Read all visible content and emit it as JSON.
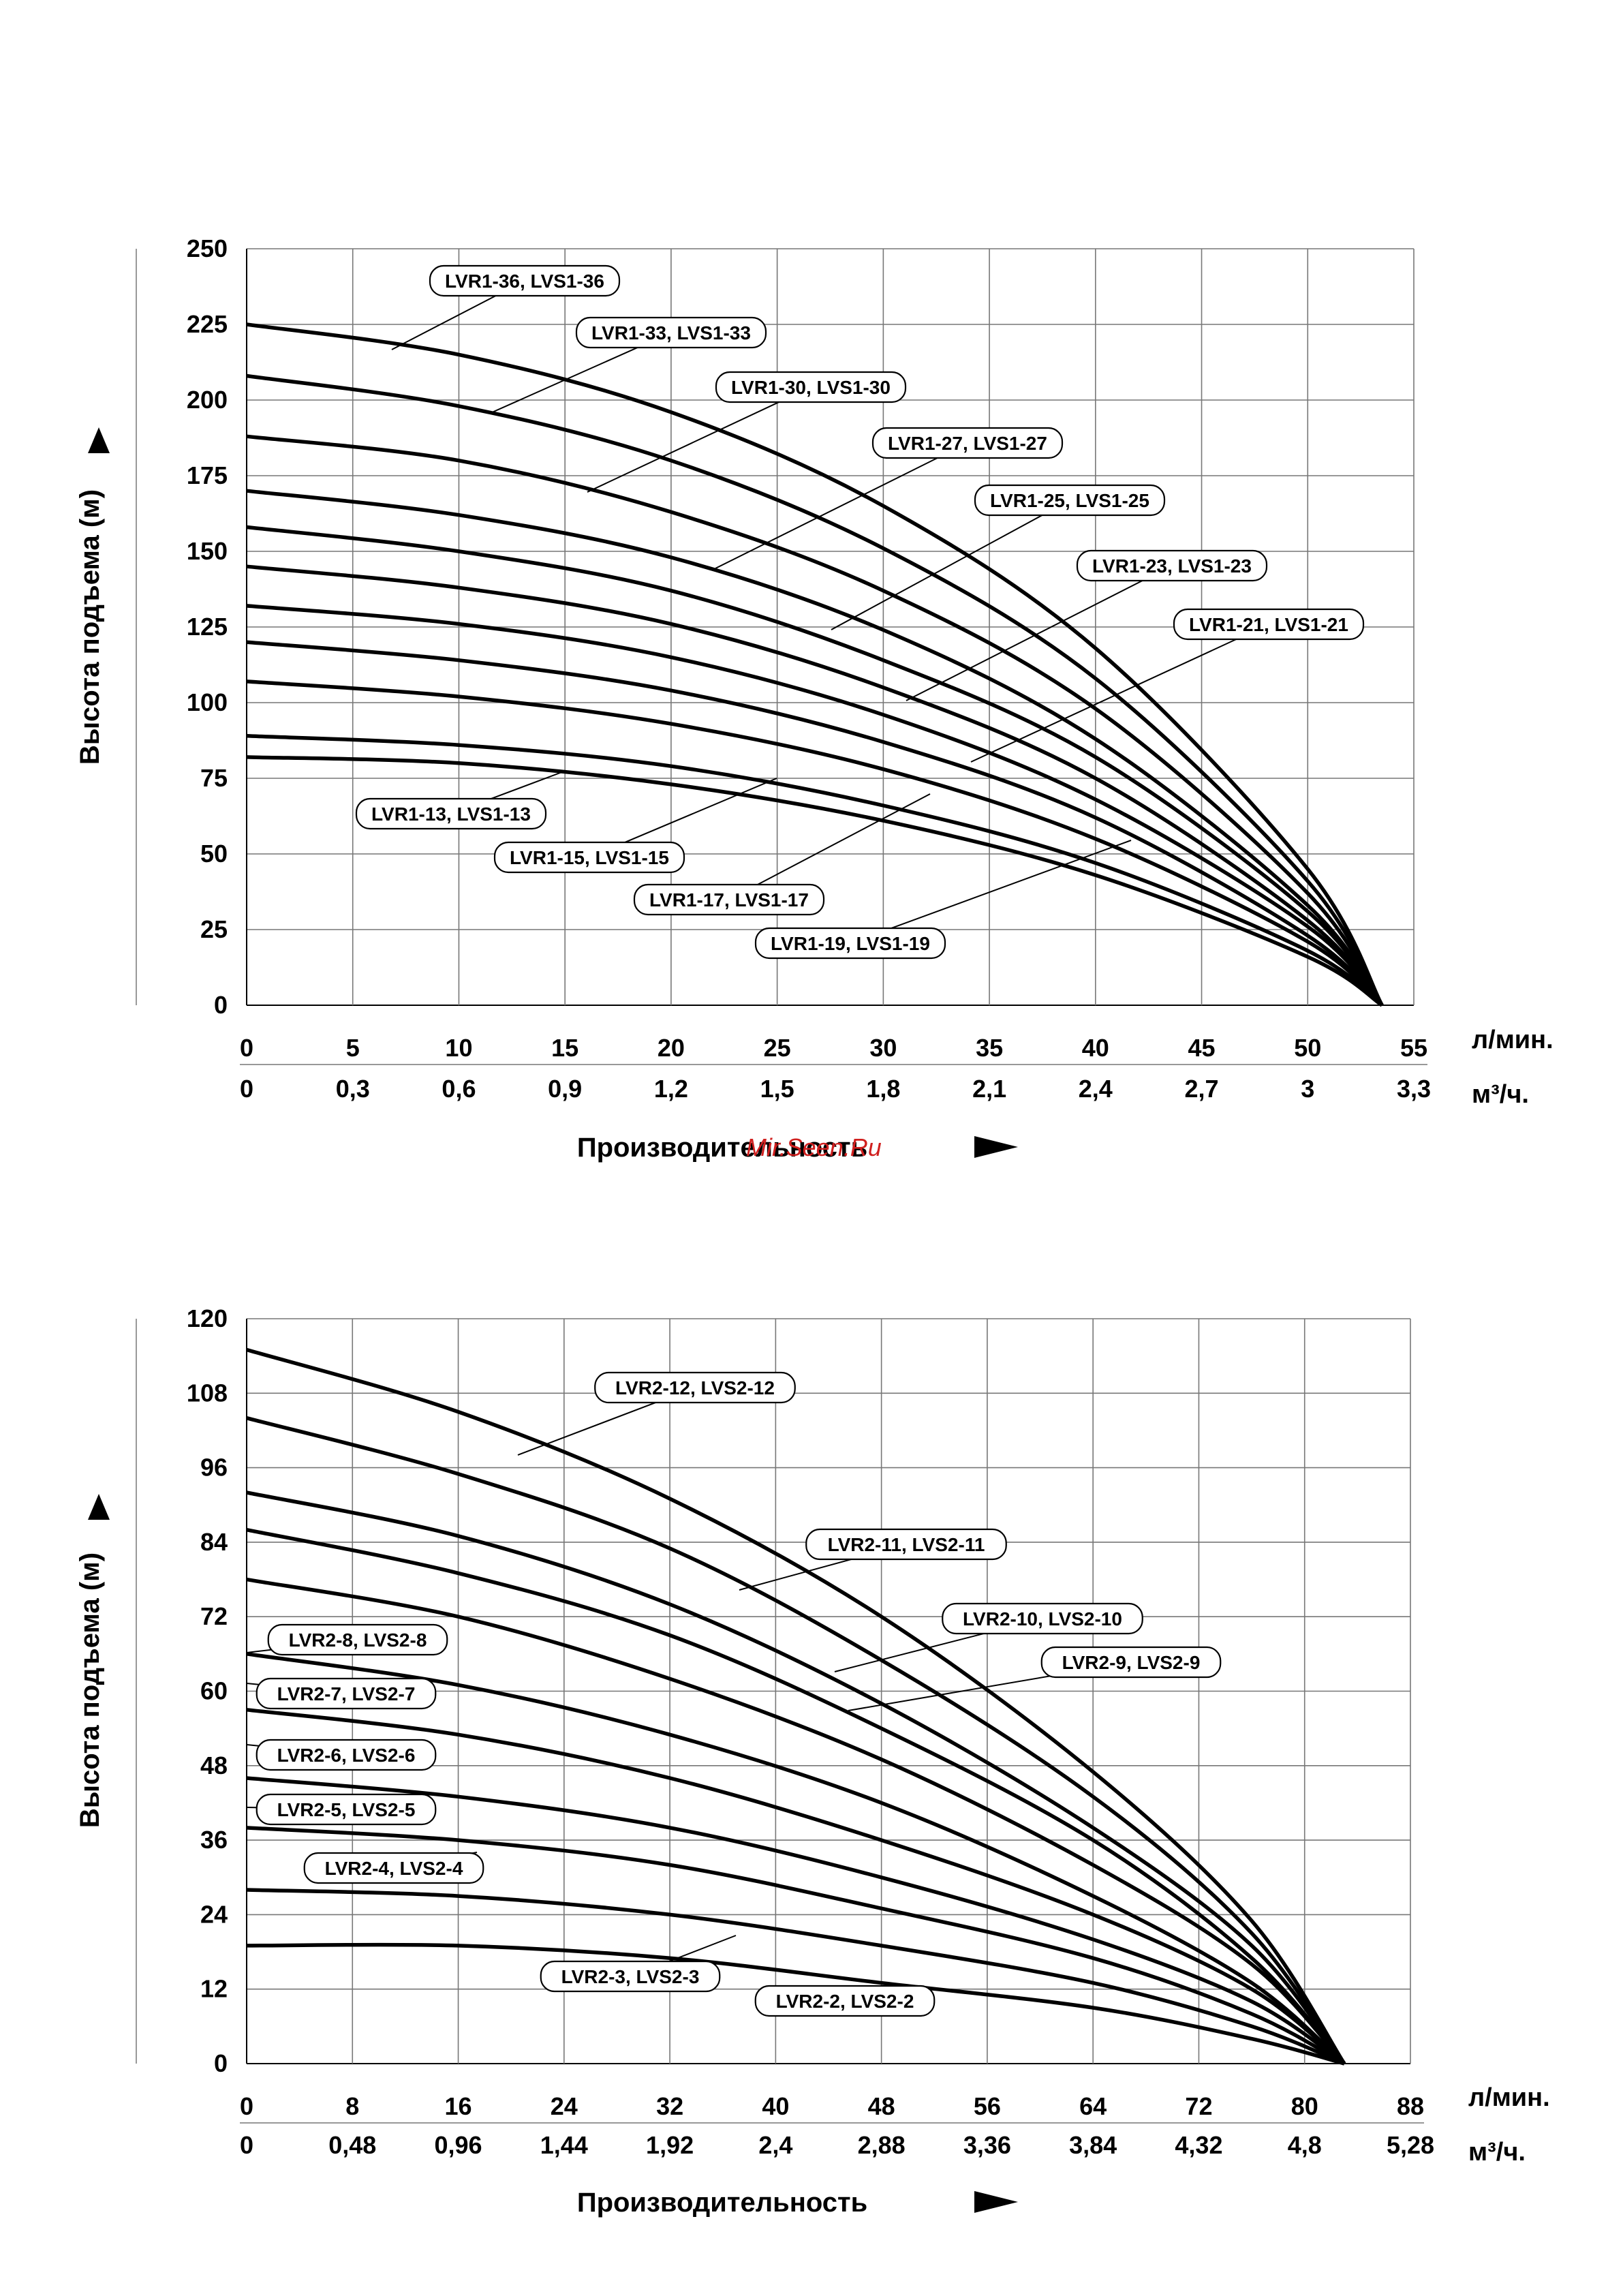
{
  "watermark": "Mir.Seen.Ru",
  "chart_data": [
    {
      "type": "line",
      "ylabel": "Высота подъема (м)",
      "xlabel": "Производительность",
      "x_unit": "л/мин.",
      "x2_unit": "м³/ч.",
      "ylim": [
        0,
        250
      ],
      "xlim": [
        0,
        55
      ],
      "yticks": [
        "0",
        "25",
        "50",
        "75",
        "100",
        "125",
        "150",
        "175",
        "200",
        "225",
        "250"
      ],
      "xticks": [
        "0",
        "5",
        "10",
        "15",
        "20",
        "25",
        "30",
        "35",
        "40",
        "45",
        "50",
        "55"
      ],
      "x2ticks": [
        "0",
        "0,3",
        "0,6",
        "0,9",
        "1,2",
        "1,5",
        "1,8",
        "2,1",
        "2,4",
        "2,7",
        "3",
        "3,3"
      ],
      "grid": true,
      "series": [
        {
          "name": "LVR1-36, LVS1-36",
          "x": [
            0,
            10,
            20,
            30,
            40,
            50,
            53.5
          ],
          "y": [
            225,
            215,
            196,
            165,
            118,
            45,
            0
          ]
        },
        {
          "name": "LVR1-33, LVS1-33",
          "x": [
            0,
            10,
            20,
            30,
            40,
            50,
            53.5
          ],
          "y": [
            208,
            198,
            180,
            151,
            108,
            41,
            0
          ]
        },
        {
          "name": "LVR1-30, LVS1-30",
          "x": [
            0,
            10,
            20,
            30,
            40,
            50,
            53.5
          ],
          "y": [
            188,
            180,
            163,
            137,
            98,
            37,
            0
          ]
        },
        {
          "name": "LVR1-27, LVS1-27",
          "x": [
            0,
            10,
            20,
            30,
            40,
            50,
            53.5
          ],
          "y": [
            170,
            162,
            148,
            124,
            88,
            33,
            0
          ]
        },
        {
          "name": "LVR1-25, LVS1-25",
          "x": [
            0,
            10,
            20,
            30,
            40,
            50,
            53.5
          ],
          "y": [
            158,
            150,
            137,
            114,
            82,
            31,
            0
          ]
        },
        {
          "name": "LVR1-23, LVS1-23",
          "x": [
            0,
            10,
            20,
            30,
            40,
            50,
            53.5
          ],
          "y": [
            145,
            138,
            126,
            105,
            75,
            28,
            0
          ]
        },
        {
          "name": "LVR1-21, LVS1-21",
          "x": [
            0,
            10,
            20,
            30,
            40,
            50,
            53.5
          ],
          "y": [
            132,
            126,
            115,
            96,
            68,
            26,
            0
          ]
        },
        {
          "name": "LVR1-19, LVS1-19",
          "x": [
            0,
            10,
            20,
            30,
            40,
            50,
            53.5
          ],
          "y": [
            120,
            114,
            104,
            87,
            62,
            23,
            0
          ]
        },
        {
          "name": "LVR1-17, LVS1-17",
          "x": [
            0,
            10,
            20,
            30,
            40,
            50,
            53.5
          ],
          "y": [
            107,
            102,
            93,
            78,
            55,
            21,
            0
          ]
        },
        {
          "name": "LVR1-15, LVS1-15",
          "x": [
            0,
            10,
            20,
            30,
            40,
            50,
            53.5
          ],
          "y": [
            89,
            86,
            79,
            66,
            47,
            18,
            0
          ]
        },
        {
          "name": "LVR1-13, LVS1-13",
          "x": [
            0,
            10,
            20,
            30,
            40,
            50,
            53.5
          ],
          "y": [
            82,
            80,
            73,
            61,
            43,
            16,
            0
          ]
        }
      ]
    },
    {
      "type": "line",
      "ylabel": "Высота подъема (м)",
      "xlabel": "Производительность",
      "x_unit": "л/мин.",
      "x2_unit": "м³/ч.",
      "ylim": [
        0,
        120
      ],
      "xlim": [
        0,
        88
      ],
      "yticks": [
        "0",
        "12",
        "24",
        "36",
        "48",
        "60",
        "72",
        "84",
        "96",
        "108",
        "120"
      ],
      "xticks": [
        "0",
        "8",
        "16",
        "24",
        "32",
        "40",
        "48",
        "56",
        "64",
        "72",
        "80",
        "88"
      ],
      "x2ticks": [
        "0",
        "0,48",
        "0,96",
        "1,44",
        "1,92",
        "2,4",
        "2,88",
        "3,36",
        "3,84",
        "4,32",
        "4,8",
        "5,28"
      ],
      "grid": true,
      "series": [
        {
          "name": "LVR2-12,  LVS2-12",
          "x": [
            0,
            16,
            32,
            48,
            64,
            76,
            83
          ],
          "y": [
            115,
            105,
            91,
            72,
            47,
            23,
            0
          ]
        },
        {
          "name": "LVR2-11,  LVS2-11",
          "x": [
            0,
            16,
            32,
            48,
            64,
            76,
            83
          ],
          "y": [
            104,
            95,
            83,
            65,
            43,
            21,
            0
          ]
        },
        {
          "name": "LVR2-10,  LVS2-10",
          "x": [
            0,
            16,
            32,
            48,
            64,
            76,
            83
          ],
          "y": [
            92,
            85,
            74,
            58,
            38,
            19,
            0
          ]
        },
        {
          "name": "LVR2-9,  LVS2-9",
          "x": [
            0,
            16,
            32,
            48,
            64,
            76,
            83
          ],
          "y": [
            86,
            79,
            69,
            54,
            36,
            17,
            0
          ]
        },
        {
          "name": "LVR2-8,  LVS2-8",
          "x": [
            0,
            16,
            32,
            48,
            64,
            76,
            83
          ],
          "y": [
            78,
            72,
            62,
            49,
            32,
            16,
            0
          ]
        },
        {
          "name": "LVR2-7,  LVS2-7",
          "x": [
            0,
            16,
            32,
            48,
            64,
            76,
            83
          ],
          "y": [
            66,
            61,
            53,
            42,
            27,
            13,
            0
          ]
        },
        {
          "name": "LVR2-6,  LVS2-6",
          "x": [
            0,
            16,
            32,
            48,
            64,
            76,
            83
          ],
          "y": [
            57,
            53,
            46,
            36,
            24,
            12,
            0
          ]
        },
        {
          "name": "LVR2-5,  LVS2-5",
          "x": [
            0,
            16,
            32,
            48,
            64,
            76,
            83
          ],
          "y": [
            46,
            43,
            38,
            30,
            20,
            10,
            0
          ]
        },
        {
          "name": "LVR2-4,  LVS2-4",
          "x": [
            0,
            16,
            32,
            48,
            64,
            76,
            83
          ],
          "y": [
            38,
            36,
            32,
            25,
            17,
            8,
            0
          ]
        },
        {
          "name": "LVR2-3,  LVS2-3",
          "x": [
            0,
            16,
            32,
            48,
            64,
            76,
            83
          ],
          "y": [
            28,
            27,
            24,
            19,
            13,
            6,
            0
          ]
        },
        {
          "name": "LVR2-2,  LVS2-2",
          "x": [
            0,
            16,
            32,
            48,
            64,
            76,
            83
          ],
          "y": [
            19,
            19,
            17,
            13,
            9,
            4,
            0
          ]
        }
      ]
    }
  ]
}
